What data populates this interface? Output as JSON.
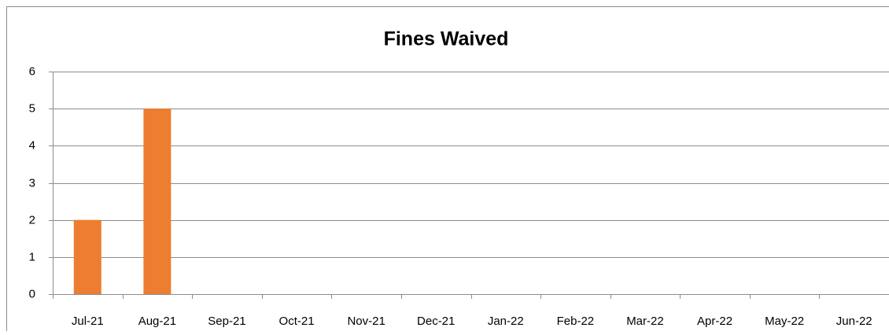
{
  "chart_data": {
    "type": "bar",
    "title": "Fines Waived",
    "categories": [
      "Jul-21",
      "Aug-21",
      "Sep-21",
      "Oct-21",
      "Nov-21",
      "Dec-21",
      "Jan-22",
      "Feb-22",
      "Mar-22",
      "Apr-22",
      "May-22",
      "Jun-22"
    ],
    "values": [
      2,
      5,
      0,
      0,
      0,
      0,
      0,
      0,
      0,
      0,
      0,
      0
    ],
    "color": "#ed7d31",
    "ylim": [
      0,
      6
    ],
    "yticks": [
      0,
      1,
      2,
      3,
      4,
      5,
      6
    ],
    "grid": true
  }
}
